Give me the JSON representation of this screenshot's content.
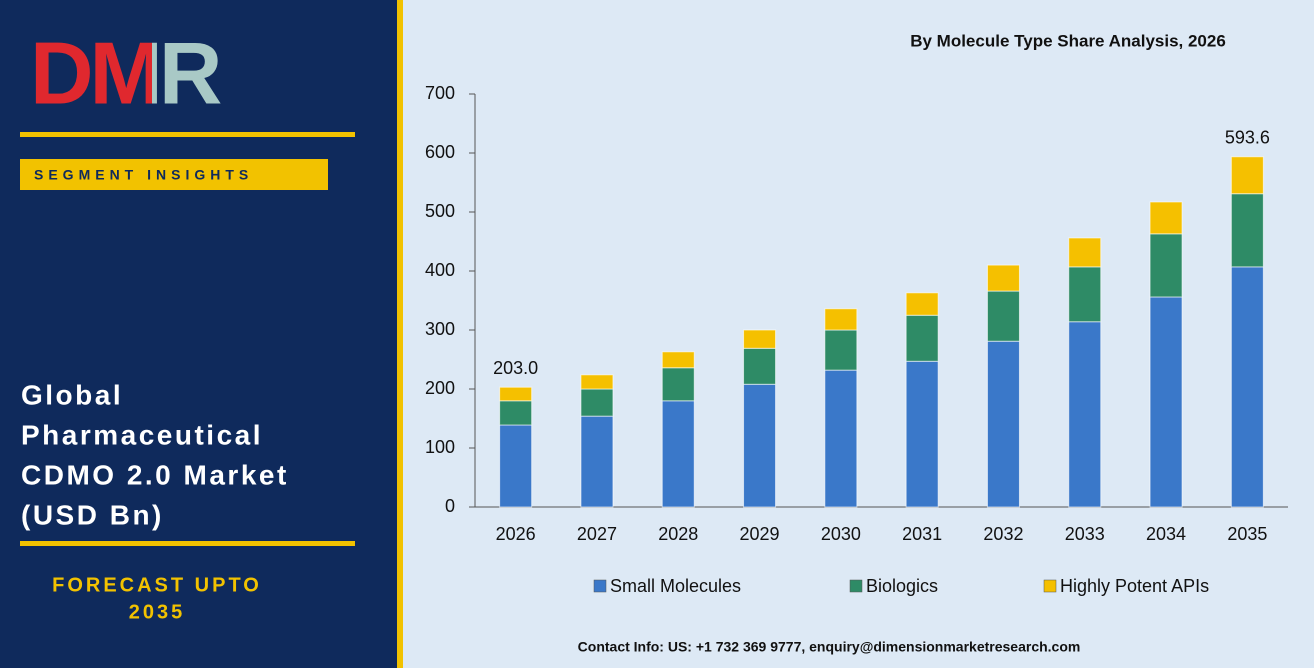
{
  "sidebar": {
    "logo": "DMR",
    "badge": "SEGMENT INSIGHTS",
    "title_lines": [
      "Global",
      "Pharmaceutical",
      "CDMO 2.0 Market",
      "(USD Bn)"
    ],
    "forecast_lines": [
      "FORECAST UPTO",
      "2035"
    ]
  },
  "chart_data": {
    "type": "stacked_bar",
    "title": "By Molecule Type Share Analysis, 2026",
    "categories": [
      "2026",
      "2027",
      "2028",
      "2029",
      "2030",
      "2031",
      "2032",
      "2033",
      "2034",
      "2035"
    ],
    "series": [
      {
        "name": "Small Molecules",
        "color": "#3a78c9",
        "values": [
          139,
          154,
          180,
          208,
          232,
          247,
          281,
          314,
          356,
          407
        ]
      },
      {
        "name": "Biologics",
        "color": "#2e8b66",
        "values": [
          41,
          46,
          56,
          61,
          68,
          78,
          85,
          93,
          107,
          124
        ]
      },
      {
        "name": "Highly Potent APIs",
        "color": "#f5c000",
        "values": [
          23,
          24,
          27,
          31,
          36,
          38,
          44,
          49,
          54,
          62.6
        ]
      }
    ],
    "total_labels": [
      "203.0",
      null,
      null,
      null,
      null,
      null,
      null,
      null,
      null,
      "593.6"
    ],
    "ylim": [
      0,
      700
    ],
    "yticks": [
      0,
      100,
      200,
      300,
      400,
      500,
      600,
      700
    ],
    "grid": false,
    "legend": "bottom"
  },
  "footer": "Contact Info: US: +1 732 369 9777, enquiry@dimensionmarketresearch.com"
}
